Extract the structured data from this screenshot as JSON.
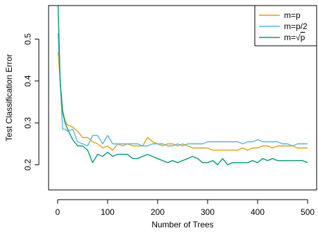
{
  "chart_data": {
    "type": "line",
    "title": "",
    "xlabel": "Number of Trees",
    "ylabel": "Test Classification Error",
    "xlim": [
      -18,
      518
    ],
    "ylim": [
      0.14,
      0.58
    ],
    "xticks": [
      0,
      100,
      200,
      300,
      400,
      500
    ],
    "yticks": [
      0.2,
      0.3,
      0.4,
      0.5
    ],
    "grid": false,
    "legend_position": "top-right",
    "series": [
      {
        "name": "m=p",
        "color": "#E69F00",
        "x": [
          1,
          5,
          10,
          15,
          20,
          30,
          40,
          50,
          60,
          70,
          80,
          90,
          100,
          110,
          120,
          130,
          140,
          150,
          160,
          170,
          180,
          190,
          200,
          210,
          220,
          230,
          240,
          250,
          260,
          270,
          280,
          290,
          300,
          310,
          320,
          330,
          340,
          350,
          360,
          370,
          380,
          390,
          400,
          410,
          420,
          430,
          440,
          450,
          460,
          470,
          480,
          490,
          500
        ],
        "y": [
          0.47,
          0.4,
          0.33,
          0.305,
          0.295,
          0.29,
          0.28,
          0.265,
          0.265,
          0.255,
          0.25,
          0.24,
          0.245,
          0.235,
          0.25,
          0.245,
          0.25,
          0.245,
          0.245,
          0.245,
          0.265,
          0.255,
          0.25,
          0.245,
          0.25,
          0.25,
          0.245,
          0.25,
          0.245,
          0.24,
          0.24,
          0.24,
          0.24,
          0.235,
          0.235,
          0.235,
          0.235,
          0.235,
          0.235,
          0.24,
          0.235,
          0.24,
          0.24,
          0.245,
          0.245,
          0.24,
          0.245,
          0.245,
          0.245,
          0.245,
          0.24,
          0.24,
          0.24
        ]
      },
      {
        "name": "m=p/2",
        "color": "#56B4E9",
        "x": [
          1,
          5,
          10,
          15,
          20,
          30,
          40,
          50,
          60,
          70,
          80,
          90,
          100,
          110,
          120,
          130,
          140,
          150,
          160,
          170,
          180,
          190,
          200,
          210,
          220,
          230,
          240,
          250,
          260,
          270,
          280,
          290,
          300,
          310,
          320,
          330,
          340,
          350,
          360,
          370,
          380,
          390,
          400,
          410,
          420,
          430,
          440,
          450,
          460,
          470,
          480,
          490,
          500
        ],
        "y": [
          0.515,
          0.4,
          0.285,
          0.285,
          0.28,
          0.285,
          0.255,
          0.25,
          0.245,
          0.27,
          0.27,
          0.25,
          0.27,
          0.25,
          0.25,
          0.25,
          0.25,
          0.25,
          0.25,
          0.245,
          0.245,
          0.25,
          0.25,
          0.25,
          0.245,
          0.245,
          0.25,
          0.245,
          0.25,
          0.25,
          0.25,
          0.25,
          0.255,
          0.255,
          0.255,
          0.255,
          0.255,
          0.255,
          0.255,
          0.25,
          0.255,
          0.255,
          0.26,
          0.255,
          0.255,
          0.255,
          0.255,
          0.25,
          0.25,
          0.245,
          0.25,
          0.25,
          0.25
        ]
      },
      {
        "name_parts": [
          "m=",
          "p"
        ],
        "name_sqrt": true,
        "color": "#009E73",
        "x": [
          1,
          5,
          10,
          15,
          20,
          30,
          40,
          50,
          60,
          70,
          80,
          90,
          100,
          110,
          120,
          130,
          140,
          150,
          160,
          170,
          180,
          190,
          200,
          210,
          220,
          230,
          240,
          250,
          260,
          270,
          280,
          290,
          300,
          310,
          320,
          330,
          340,
          350,
          360,
          370,
          380,
          390,
          400,
          410,
          420,
          430,
          440,
          450,
          460,
          470,
          480,
          490,
          500
        ],
        "y": [
          0.58,
          0.4,
          0.325,
          0.3,
          0.285,
          0.26,
          0.245,
          0.245,
          0.235,
          0.205,
          0.225,
          0.22,
          0.23,
          0.22,
          0.225,
          0.225,
          0.225,
          0.215,
          0.215,
          0.22,
          0.225,
          0.22,
          0.215,
          0.21,
          0.205,
          0.21,
          0.205,
          0.21,
          0.215,
          0.22,
          0.215,
          0.205,
          0.205,
          0.21,
          0.2,
          0.215,
          0.2,
          0.205,
          0.205,
          0.205,
          0.205,
          0.21,
          0.205,
          0.215,
          0.21,
          0.215,
          0.21,
          0.21,
          0.21,
          0.21,
          0.21,
          0.21,
          0.205
        ]
      }
    ]
  }
}
